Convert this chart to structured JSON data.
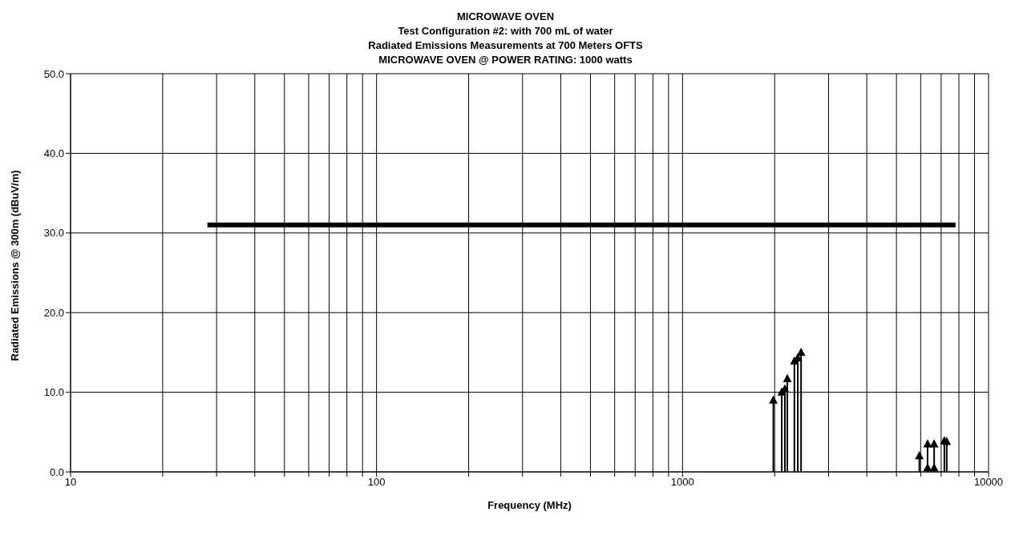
{
  "chart_data": {
    "type": "lollipop",
    "title": "MICROWAVE OVEN",
    "subtitle": "Test Configuration #2: with 700 mL of water\nRadiated Emissions Measurements at 700 Meters OFTS\nMICROWAVE OVEN @ POWER RATING: 1000 watts",
    "xlabel": "Frequency (MHz)",
    "ylabel": "Radiated Emissions @ 300m (dBuV/m)",
    "log": "x",
    "grid": true,
    "xlim": [
      10,
      10000
    ],
    "xticks": [
      10,
      {
        "value": 20,
        "label": null
      },
      {
        "value": 30,
        "label": null
      },
      {
        "value": 40,
        "label": null
      },
      {
        "value": 50,
        "label": null
      },
      {
        "value": 60,
        "label": null
      },
      {
        "value": 70,
        "label": null
      },
      {
        "value": 80,
        "label": null
      },
      {
        "value": 90,
        "label": null
      },
      100,
      {
        "value": 200,
        "label": null
      },
      {
        "value": 300,
        "label": null
      },
      {
        "value": 400,
        "label": null
      },
      {
        "value": 500,
        "label": null
      },
      {
        "value": 600,
        "label": null
      },
      {
        "value": 700,
        "label": null
      },
      {
        "value": 800,
        "label": null
      },
      {
        "value": 900,
        "label": null
      },
      1000,
      {
        "value": 2000,
        "label": null
      },
      {
        "value": 3000,
        "label": null
      },
      {
        "value": 4000,
        "label": null
      },
      {
        "value": 5000,
        "label": null
      },
      {
        "value": 6000,
        "label": null
      },
      {
        "value": 7000,
        "label": null
      },
      {
        "value": 8000,
        "label": null
      },
      {
        "value": 9000,
        "label": null
      },
      10000
    ],
    "ylim": [
      0,
      50
    ],
    "yticks": [
      {
        "value": 0,
        "label": "0.0"
      },
      {
        "value": 10,
        "label": "10.0"
      },
      {
        "value": 20,
        "label": "20.0"
      },
      {
        "value": 30,
        "label": "30.0"
      },
      {
        "value": 40,
        "label": "40.0"
      },
      {
        "value": 50,
        "label": "50.0"
      }
    ],
    "series": [
      {
        "type": "line",
        "color": "#000000",
        "x": [
          28,
          7800
        ],
        "values": [
          31,
          31
        ]
      },
      {
        "marker": "triangle",
        "color": "#000000",
        "x": [
          1980,
          2110,
          2160,
          2200,
          2320,
          2380,
          2440,
          5940,
          6320,
          6320,
          6640,
          6640,
          7170,
          7300
        ],
        "values": [
          9.0,
          10.0,
          10.4,
          11.7,
          13.9,
          14.3,
          15.0,
          2.0,
          3.5,
          0.5,
          3.5,
          0.5,
          3.9,
          3.8
        ]
      }
    ]
  }
}
